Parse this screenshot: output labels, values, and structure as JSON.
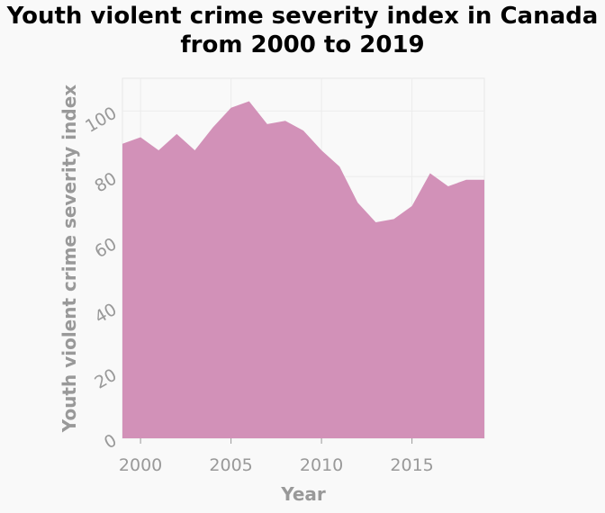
{
  "chart_data": {
    "type": "area",
    "title_line1": "Youth violent crime severity index in Canada",
    "title_line2": "from 2000 to 2019",
    "xlabel": "Year",
    "ylabel": "Youth violent crime severity index",
    "xlim": [
      1999,
      2019
    ],
    "ylim": [
      0,
      110
    ],
    "x_ticks": [
      2000,
      2005,
      2010,
      2015
    ],
    "y_ticks": [
      0,
      20,
      40,
      60,
      80,
      100
    ],
    "grid": true,
    "fill_color": "#d291b8",
    "x": [
      1999,
      2000,
      2001,
      2002,
      2003,
      2004,
      2005,
      2006,
      2007,
      2008,
      2009,
      2010,
      2011,
      2012,
      2013,
      2014,
      2015,
      2016,
      2017,
      2018,
      2019
    ],
    "values": [
      90,
      92,
      88,
      93,
      88,
      95,
      101,
      103,
      96,
      97,
      94,
      88,
      83,
      72,
      66,
      67,
      71,
      81,
      77,
      79,
      79
    ]
  }
}
